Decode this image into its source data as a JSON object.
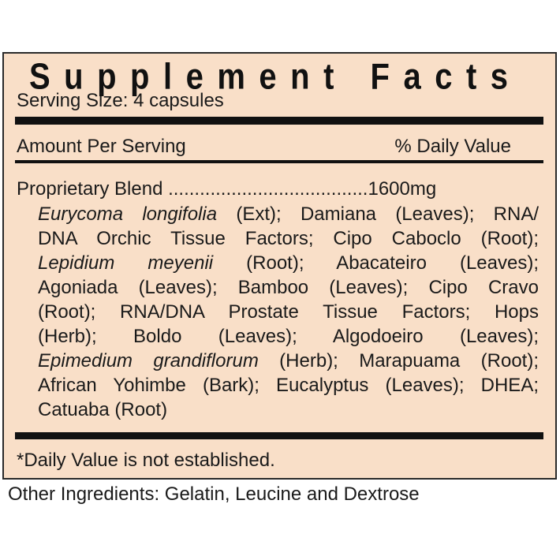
{
  "title": "Supplement Facts",
  "serving_size": "Serving Size: 4 capsules",
  "amount_per_serving": "Amount Per Serving",
  "daily_value_header": "% Daily Value",
  "blend": {
    "label": "Proprietary Blend ",
    "dots": "......................................",
    "amount": "1600mg"
  },
  "ingredient_lines": [
    [
      {
        "t": "Eurycoma longifolia",
        "i": true
      },
      {
        "t": " (Ext); Damiana (Leaves); RNA/",
        "i": false
      }
    ],
    [
      {
        "t": "DNA Orchic Tissue Factors; Cipo Caboclo (Root);",
        "i": false
      }
    ],
    [
      {
        "t": "Lepidium meyenii",
        "i": true
      },
      {
        "t": " (Root); Abacateiro (Leaves);",
        "i": false
      }
    ],
    [
      {
        "t": "Agoniada (Leaves); Bamboo (Leaves); Cipo Cravo",
        "i": false
      }
    ],
    [
      {
        "t": "(Root); RNA/DNA Prostate Tissue Factors; Hops",
        "i": false
      }
    ],
    [
      {
        "t": "(Herb); Boldo (Leaves); Algodoeiro (Leaves);",
        "i": false
      }
    ],
    [
      {
        "t": "Epimedium grandiflorum",
        "i": true
      },
      {
        "t": " (Herb); Marapuama (Root);",
        "i": false
      }
    ],
    [
      {
        "t": "African Yohimbe (Bark); Eucalyptus (Leaves); DHEA;",
        "i": false
      }
    ],
    [
      {
        "t": "Catuaba (Root)",
        "i": false
      }
    ]
  ],
  "footnote": "*Daily Value is not established.",
  "other_ingredients": "Other Ingredients: Gelatin, Leucine and Dextrose",
  "colors": {
    "panel_background": "#f9dfc8",
    "text": "#1a1a1a"
  }
}
